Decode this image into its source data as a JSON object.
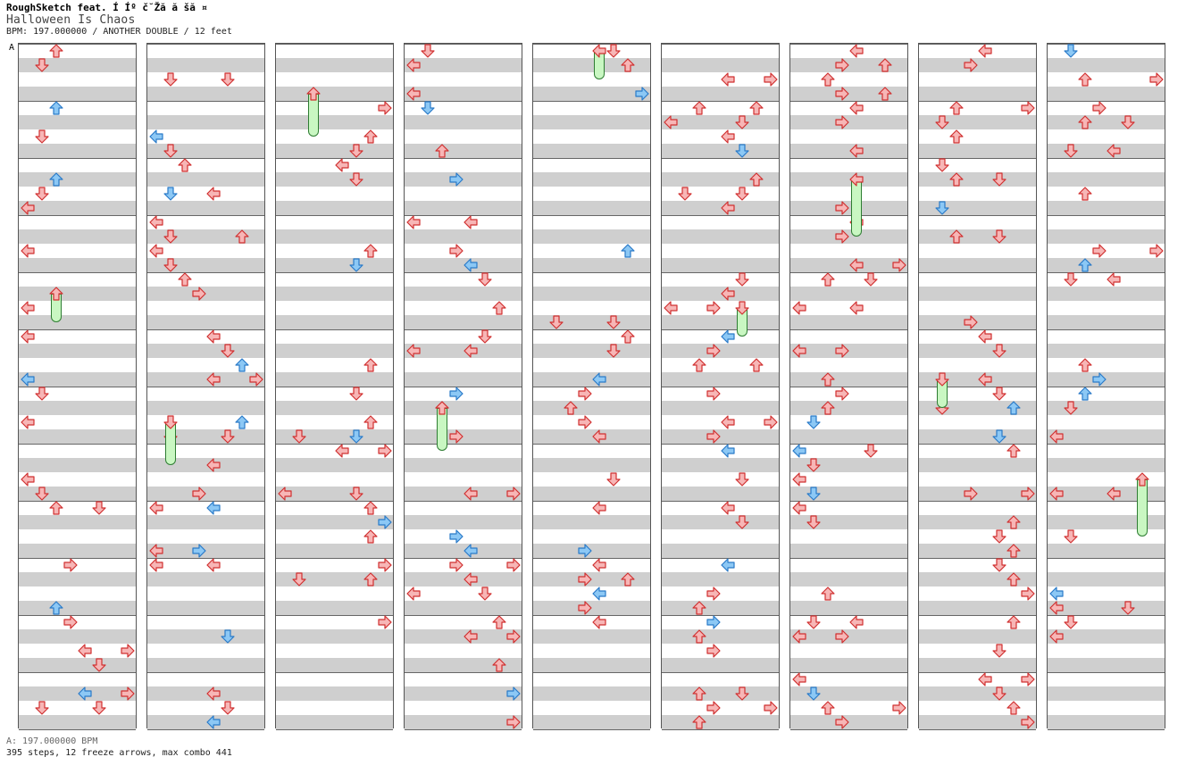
{
  "header": {
    "title_line": "RoughSketch feat. Í  Íº č˘Žă  ă šă ¤",
    "song_title": "Halloween Is Chaos",
    "info_line": "BPM: 197.000000 / ANOTHER DOUBLE / 12 feet"
  },
  "bpm_marker_label": "A",
  "footer": {
    "bpm_text": "A: 197.000000 BPM",
    "stats_text": "395 steps, 12 freeze arrows, max combo 441"
  },
  "colors": {
    "red_arrow_fill": "#f7b6b6",
    "red_arrow_stroke": "#d03030",
    "blue_arrow_fill": "#8cc8f5",
    "blue_arrow_stroke": "#2a7ac8",
    "pink_arrow_fill": "#f5b8ec",
    "pink_arrow_stroke": "#c040b0",
    "freeze_fill": "#c9f7c2",
    "freeze_stroke": "#2e7d32",
    "band_gray": "#cfcfcf"
  },
  "icons": {
    "left": "left-arrow-icon",
    "down": "down-arrow-icon",
    "up": "up-arrow-icon",
    "right": "right-arrow-icon"
  }
}
